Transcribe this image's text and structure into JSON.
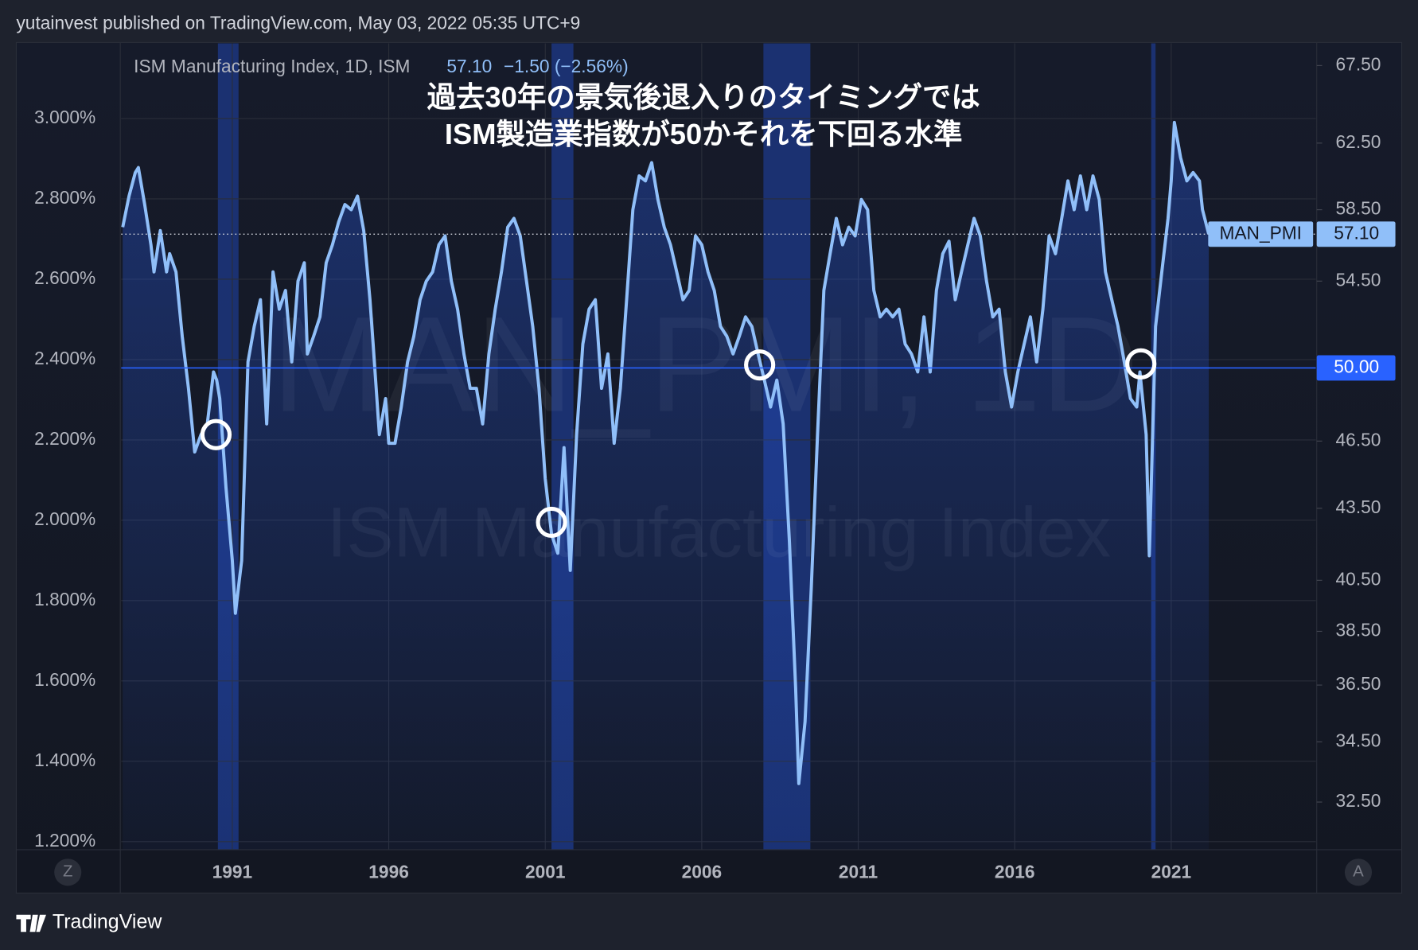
{
  "header": "yutainvest published on TradingView.com, May 03, 2022 05:35 UTC+9",
  "footer": "TradingView",
  "buttons": [
    "Z",
    "A"
  ],
  "chart_data": {
    "type": "line",
    "annotation": [
      "過去30年の景気後退入りのタイミングでは",
      "ISM製造業指数が50かそれを下回る水準"
    ],
    "legend": {
      "name": "ISM Manufacturing Index, 1D, ISM",
      "last": "57.10",
      "change": "−1.50 (−2.56%)"
    },
    "watermark": [
      "MAN_PMI, 1D",
      "ISM Manufacturing Index"
    ],
    "x": [
      1987.5,
      1987.7,
      1987.9,
      1988.0,
      1988.2,
      1988.4,
      1988.5,
      1988.7,
      1988.9,
      1989.0,
      1989.2,
      1989.4,
      1989.6,
      1989.8,
      1990.0,
      1990.2,
      1990.4,
      1990.5,
      1990.6,
      1990.8,
      1991.0,
      1991.1,
      1991.3,
      1991.5,
      1991.7,
      1991.9,
      1992.1,
      1992.3,
      1992.5,
      1992.7,
      1992.9,
      1993.1,
      1993.3,
      1993.4,
      1993.6,
      1993.8,
      1994.0,
      1994.2,
      1994.4,
      1994.6,
      1994.8,
      1995.0,
      1995.2,
      1995.4,
      1995.5,
      1995.7,
      1995.9,
      1996.0,
      1996.2,
      1996.4,
      1996.6,
      1996.8,
      1997.0,
      1997.2,
      1997.4,
      1997.6,
      1997.8,
      1998.0,
      1998.2,
      1998.4,
      1998.6,
      1998.8,
      1999.0,
      1999.2,
      1999.4,
      1999.6,
      1999.8,
      2000.0,
      2000.2,
      2000.4,
      2000.6,
      2000.8,
      2001.0,
      2001.2,
      2001.4,
      2001.6,
      2001.8,
      2002.0,
      2002.2,
      2002.4,
      2002.6,
      2002.8,
      2003.0,
      2003.2,
      2003.4,
      2003.6,
      2003.8,
      2004.0,
      2004.2,
      2004.4,
      2004.6,
      2004.8,
      2005.0,
      2005.2,
      2005.4,
      2005.6,
      2005.8,
      2006.0,
      2006.2,
      2006.4,
      2006.6,
      2006.8,
      2007.0,
      2007.2,
      2007.4,
      2007.6,
      2007.8,
      2008.0,
      2008.2,
      2008.4,
      2008.6,
      2008.8,
      2009.0,
      2009.1,
      2009.3,
      2009.5,
      2009.7,
      2009.9,
      2010.1,
      2010.3,
      2010.5,
      2010.7,
      2010.9,
      2011.1,
      2011.3,
      2011.5,
      2011.7,
      2011.9,
      2012.1,
      2012.3,
      2012.5,
      2012.7,
      2012.9,
      2013.1,
      2013.3,
      2013.5,
      2013.7,
      2013.9,
      2014.1,
      2014.3,
      2014.5,
      2014.7,
      2014.9,
      2015.1,
      2015.3,
      2015.5,
      2015.7,
      2015.9,
      2016.1,
      2016.3,
      2016.5,
      2016.7,
      2016.9,
      2017.1,
      2017.3,
      2017.5,
      2017.7,
      2017.9,
      2018.1,
      2018.3,
      2018.5,
      2018.7,
      2018.9,
      2019.1,
      2019.3,
      2019.5,
      2019.7,
      2019.9,
      2020.0,
      2020.2,
      2020.3,
      2020.4,
      2020.5,
      2020.7,
      2020.9,
      2021.0,
      2021.1,
      2021.3,
      2021.5,
      2021.7,
      2021.9,
      2022.0,
      2022.2
    ],
    "series": [
      {
        "name": "MAN_PMI",
        "color": "#90bff9",
        "values": [
          57.5,
          59.3,
          60.7,
          61.0,
          58.8,
          56.5,
          55.0,
          57.3,
          55.0,
          56.0,
          55.0,
          51.6,
          49.0,
          46.0,
          46.8,
          47.3,
          49.8,
          49.4,
          48.5,
          44.4,
          41.3,
          39.2,
          41.3,
          50.3,
          52.1,
          53.5,
          47.3,
          55.0,
          53.0,
          54.0,
          50.3,
          54.5,
          55.5,
          50.7,
          51.6,
          52.6,
          55.5,
          56.5,
          57.8,
          58.8,
          58.5,
          59.3,
          57.3,
          53.5,
          51.2,
          46.8,
          48.5,
          46.4,
          46.4,
          48.1,
          50.3,
          51.6,
          53.5,
          54.5,
          55.0,
          56.5,
          57.0,
          54.5,
          53.0,
          50.7,
          49.0,
          49.0,
          47.3,
          50.7,
          53.0,
          55.0,
          57.5,
          58.0,
          57.0,
          54.5,
          52.1,
          49.0,
          44.8,
          42.4,
          41.6,
          46.2,
          40.9,
          46.8,
          51.2,
          53.0,
          53.5,
          49.0,
          50.7,
          46.4,
          49.0,
          53.5,
          58.5,
          60.5,
          60.2,
          61.3,
          59.1,
          57.5,
          56.5,
          55.0,
          53.5,
          54.0,
          57.0,
          56.5,
          55.0,
          54.0,
          52.1,
          51.6,
          50.7,
          51.6,
          52.6,
          52.1,
          50.7,
          49.4,
          48.1,
          49.4,
          47.3,
          42.1,
          36.4,
          33.1,
          35.2,
          40.2,
          46.8,
          54.0,
          56.0,
          58.0,
          56.5,
          57.5,
          57.0,
          59.1,
          58.5,
          54.0,
          52.6,
          53.0,
          52.6,
          53.0,
          51.2,
          50.7,
          49.8,
          52.6,
          49.8,
          54.0,
          56.0,
          56.7,
          53.5,
          55.0,
          56.5,
          58.0,
          57.0,
          54.5,
          52.6,
          53.0,
          49.8,
          48.1,
          49.8,
          51.2,
          52.6,
          50.3,
          53.0,
          57.0,
          56.0,
          58.0,
          60.2,
          58.5,
          60.5,
          58.5,
          60.5,
          59.1,
          55.0,
          53.5,
          52.1,
          50.3,
          48.5,
          48.1,
          49.8,
          46.8,
          41.5,
          46.4,
          52.1,
          55.0,
          58.0,
          60.2,
          63.8,
          61.6,
          60.2,
          60.7,
          60.2,
          58.5,
          57.1
        ]
      }
    ],
    "last_label": "57.10",
    "hline": {
      "value": 50,
      "label": "50.00"
    },
    "recessions": [
      [
        1990.54,
        1991.2
      ],
      [
        2001.2,
        2001.9
      ],
      [
        2007.97,
        2009.47
      ],
      [
        2020.36,
        2020.5
      ]
    ],
    "markers": [
      {
        "x": 1990.48,
        "y": 46.8
      },
      {
        "x": 2001.2,
        "y": 42.9
      },
      {
        "x": 2007.85,
        "y": 50.15
      },
      {
        "x": 2020.03,
        "y": 50.2
      }
    ],
    "xlim": [
      1987.45,
      2025.62
    ],
    "xticks": [
      1991,
      1996,
      2001,
      2006,
      2011,
      2016,
      2021
    ],
    "ylim": [
      31,
      69
    ],
    "log_scale": true,
    "yticks": [
      {
        "value": 67.5,
        "label": "67.50"
      },
      {
        "value": 62.5,
        "label": "62.50"
      },
      {
        "value": 58.5,
        "label": "58.50"
      },
      {
        "value": 54.5,
        "label": "54.50"
      },
      {
        "value": 46.5,
        "label": "46.50"
      },
      {
        "value": 43.5,
        "label": "43.50"
      },
      {
        "value": 40.5,
        "label": "40.50"
      },
      {
        "value": 38.5,
        "label": "38.50"
      },
      {
        "value": 36.5,
        "label": "36.50"
      },
      {
        "value": 34.5,
        "label": "34.50"
      },
      {
        "value": 32.5,
        "label": "32.50"
      }
    ],
    "y2lim": [
      1.18,
      3.187
    ],
    "y2ticks": [
      {
        "value": 3.0,
        "label": "3.000%"
      },
      {
        "value": 2.8,
        "label": "2.800%"
      },
      {
        "value": 2.6,
        "label": "2.600%"
      },
      {
        "value": 2.4,
        "label": "2.400%"
      },
      {
        "value": 2.2,
        "label": "2.200%"
      },
      {
        "value": 2.0,
        "label": "2.000%"
      },
      {
        "value": 1.8,
        "label": "1.800%"
      },
      {
        "value": 1.6,
        "label": "1.600%"
      },
      {
        "value": 1.4,
        "label": "1.400%"
      },
      {
        "value": 1.2,
        "label": "1.200%"
      }
    ],
    "grid": true
  }
}
